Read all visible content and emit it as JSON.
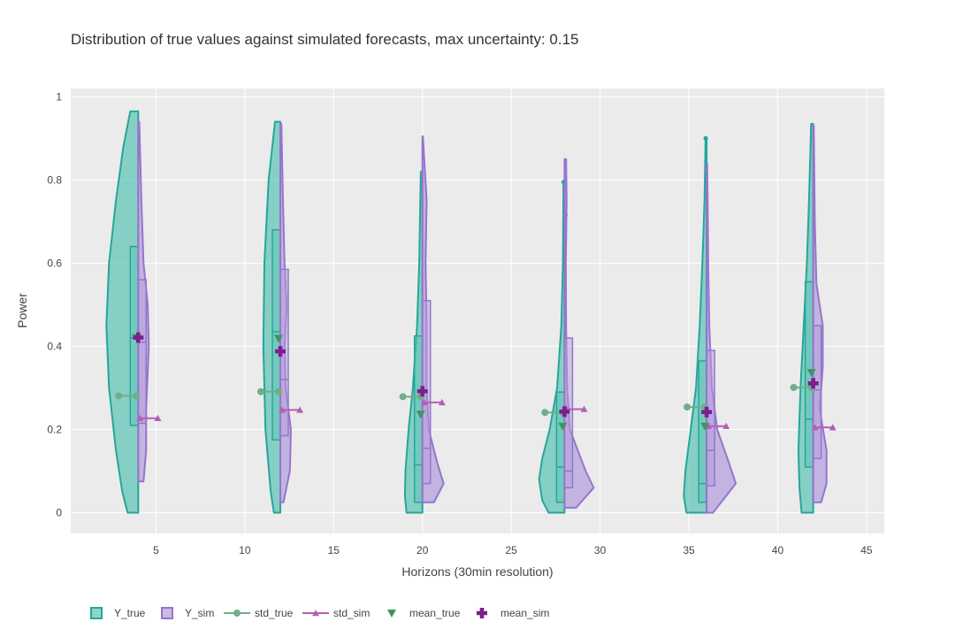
{
  "colors": {
    "y_true_fill": "#5ec4b6",
    "y_true_line": "#26a69a",
    "y_sim_fill": "#b39ddb",
    "y_sim_line": "#9575cd",
    "std_true": "#6fae8a",
    "std_sim": "#b360b3",
    "mean_true": "#3f9460",
    "mean_sim": "#7b1f8c",
    "plot_bg": "#ebebeb"
  },
  "chart_data": {
    "type": "violin",
    "title": "Distribution of true values against simulated forecasts, max uncertainty: 0.15",
    "xlabel": "Horizons (30min resolution)",
    "ylabel": "Power",
    "xlim": [
      0.2,
      46
    ],
    "ylim": [
      -0.05,
      1.02
    ],
    "xticks": [
      5,
      10,
      15,
      20,
      25,
      30,
      35,
      40,
      45
    ],
    "yticks": [
      0,
      0.2,
      0.4,
      0.6,
      0.8,
      1
    ],
    "ytick_labels": [
      "0",
      "0.2",
      "0.4",
      "0.6",
      "0.8",
      "1"
    ],
    "legend": [
      "Y_true",
      "Y_sim",
      "std_true",
      "std_sim",
      "mean_true",
      "mean_sim"
    ],
    "horizons": [
      4,
      12,
      20,
      28,
      36,
      42
    ],
    "y_true": [
      {
        "min": 0,
        "max": 0.965,
        "q1": 0.21,
        "median": 0.42,
        "q3": 0.64,
        "outliers": [],
        "density": [
          [
            0,
            0.2
          ],
          [
            0.05,
            0.3
          ],
          [
            0.15,
            0.42
          ],
          [
            0.3,
            0.55
          ],
          [
            0.45,
            0.6
          ],
          [
            0.6,
            0.55
          ],
          [
            0.75,
            0.42
          ],
          [
            0.88,
            0.28
          ],
          [
            0.965,
            0.15
          ]
        ]
      },
      {
        "min": 0,
        "max": 0.94,
        "q1": 0.175,
        "median": 0.435,
        "q3": 0.68,
        "outliers": [],
        "density": [
          [
            0,
            0.12
          ],
          [
            0.05,
            0.18
          ],
          [
            0.2,
            0.28
          ],
          [
            0.4,
            0.32
          ],
          [
            0.6,
            0.3
          ],
          [
            0.8,
            0.22
          ],
          [
            0.94,
            0.1
          ]
        ]
      },
      {
        "min": 0,
        "max": 0.82,
        "q1": 0.025,
        "median": 0.115,
        "q3": 0.425,
        "outliers": [],
        "density": [
          [
            0,
            0.3
          ],
          [
            0.04,
            0.33
          ],
          [
            0.1,
            0.32
          ],
          [
            0.2,
            0.26
          ],
          [
            0.3,
            0.18
          ],
          [
            0.45,
            0.1
          ],
          [
            0.6,
            0.06
          ],
          [
            0.75,
            0.04
          ],
          [
            0.82,
            0.03
          ]
        ]
      },
      {
        "min": 0,
        "max": 0.795,
        "q1": 0.025,
        "median": 0.11,
        "q3": 0.29,
        "outliers": [
          0.795
        ],
        "density": [
          [
            0,
            0.3
          ],
          [
            0.03,
            0.42
          ],
          [
            0.08,
            0.48
          ],
          [
            0.13,
            0.42
          ],
          [
            0.2,
            0.28
          ],
          [
            0.3,
            0.14
          ],
          [
            0.45,
            0.06
          ],
          [
            0.6,
            0.03
          ],
          [
            0.795,
            0.02
          ]
        ]
      },
      {
        "min": 0,
        "max": 0.9,
        "q1": 0.025,
        "median": 0.07,
        "q3": 0.365,
        "outliers": [
          0.9
        ],
        "density": [
          [
            0,
            0.38
          ],
          [
            0.04,
            0.43
          ],
          [
            0.1,
            0.4
          ],
          [
            0.2,
            0.3
          ],
          [
            0.3,
            0.2
          ],
          [
            0.45,
            0.13
          ],
          [
            0.6,
            0.08
          ],
          [
            0.75,
            0.04
          ],
          [
            0.9,
            0.02
          ]
        ]
      },
      {
        "min": 0,
        "max": 0.935,
        "q1": 0.11,
        "median": 0.225,
        "q3": 0.555,
        "outliers": [],
        "density": [
          [
            0,
            0.22
          ],
          [
            0.06,
            0.26
          ],
          [
            0.15,
            0.28
          ],
          [
            0.3,
            0.24
          ],
          [
            0.45,
            0.18
          ],
          [
            0.6,
            0.12
          ],
          [
            0.75,
            0.08
          ],
          [
            0.935,
            0.04
          ]
        ]
      }
    ],
    "y_sim": [
      {
        "min": 0.075,
        "max": 0.94,
        "q1": 0.215,
        "median": 0.41,
        "q3": 0.56,
        "outliers": [],
        "density": [
          [
            0.075,
            0.1
          ],
          [
            0.15,
            0.15
          ],
          [
            0.25,
            0.15
          ],
          [
            0.4,
            0.2
          ],
          [
            0.5,
            0.18
          ],
          [
            0.6,
            0.1
          ],
          [
            0.75,
            0.06
          ],
          [
            0.94,
            0.02
          ]
        ]
      },
      {
        "min": 0.025,
        "max": 0.935,
        "q1": 0.185,
        "median": 0.32,
        "q3": 0.585,
        "outliers": [],
        "density": [
          [
            0.025,
            0.06
          ],
          [
            0.1,
            0.18
          ],
          [
            0.2,
            0.2
          ],
          [
            0.3,
            0.1
          ],
          [
            0.4,
            0.08
          ],
          [
            0.5,
            0.12
          ],
          [
            0.6,
            0.08
          ],
          [
            0.75,
            0.05
          ],
          [
            0.935,
            0.02
          ]
        ]
      },
      {
        "min": 0.025,
        "max": 0.905,
        "q1": 0.07,
        "median": 0.155,
        "q3": 0.51,
        "outliers": [],
        "density": [
          [
            0.025,
            0.22
          ],
          [
            0.07,
            0.4
          ],
          [
            0.12,
            0.28
          ],
          [
            0.2,
            0.12
          ],
          [
            0.3,
            0.08
          ],
          [
            0.45,
            0.08
          ],
          [
            0.6,
            0.06
          ],
          [
            0.75,
            0.08
          ],
          [
            0.905,
            0.01
          ]
        ]
      },
      {
        "min": 0.012,
        "max": 0.85,
        "q1": 0.06,
        "median": 0.1,
        "q3": 0.42,
        "outliers": [
          0.715
        ],
        "density": [
          [
            0.012,
            0.22
          ],
          [
            0.06,
            0.55
          ],
          [
            0.1,
            0.4
          ],
          [
            0.2,
            0.1
          ],
          [
            0.3,
            0.05
          ],
          [
            0.45,
            0.03
          ],
          [
            0.6,
            0.025
          ],
          [
            0.75,
            0.04
          ],
          [
            0.85,
            0.03
          ]
        ]
      },
      {
        "min": 0,
        "max": 0.84,
        "q1": 0.065,
        "median": 0.15,
        "q3": 0.39,
        "outliers": [],
        "density": [
          [
            0,
            0.12
          ],
          [
            0.07,
            0.55
          ],
          [
            0.12,
            0.42
          ],
          [
            0.2,
            0.2
          ],
          [
            0.3,
            0.1
          ],
          [
            0.45,
            0.05
          ],
          [
            0.6,
            0.03
          ],
          [
            0.75,
            0.02
          ],
          [
            0.84,
            0.01
          ]
        ]
      },
      {
        "min": 0.025,
        "max": 0.93,
        "q1": 0.13,
        "median": 0.295,
        "q3": 0.45,
        "outliers": [],
        "density": [
          [
            0.025,
            0.15
          ],
          [
            0.07,
            0.25
          ],
          [
            0.15,
            0.25
          ],
          [
            0.25,
            0.12
          ],
          [
            0.35,
            0.18
          ],
          [
            0.45,
            0.18
          ],
          [
            0.55,
            0.06
          ],
          [
            0.7,
            0.03
          ],
          [
            0.93,
            0.01
          ]
        ]
      }
    ],
    "std_true": [
      {
        "value": 0.281,
        "x_start": 2.9,
        "x_end": 3.9
      },
      {
        "value": 0.291,
        "x_start": 10.9,
        "x_end": 11.9
      },
      {
        "value": 0.279,
        "x_start": 18.9,
        "x_end": 19.9
      },
      {
        "value": 0.241,
        "x_start": 26.9,
        "x_end": 27.9
      },
      {
        "value": 0.254,
        "x_start": 34.9,
        "x_end": 35.9
      },
      {
        "value": 0.301,
        "x_start": 40.9,
        "x_end": 41.9
      }
    ],
    "std_sim": [
      {
        "value": 0.227,
        "x_start": 4.1,
        "x_end": 5.1
      },
      {
        "value": 0.247,
        "x_start": 12.1,
        "x_end": 13.1
      },
      {
        "value": 0.265,
        "x_start": 20.1,
        "x_end": 21.1
      },
      {
        "value": 0.249,
        "x_start": 28.1,
        "x_end": 29.1
      },
      {
        "value": 0.208,
        "x_start": 36.1,
        "x_end": 37.1
      },
      {
        "value": 0.205,
        "x_start": 42.1,
        "x_end": 43.1
      }
    ],
    "mean_true": [
      0.421,
      0.419,
      0.237,
      0.208,
      0.208,
      0.337
    ],
    "mean_sim": [
      0.421,
      0.388,
      0.292,
      0.243,
      0.242,
      0.311
    ]
  }
}
